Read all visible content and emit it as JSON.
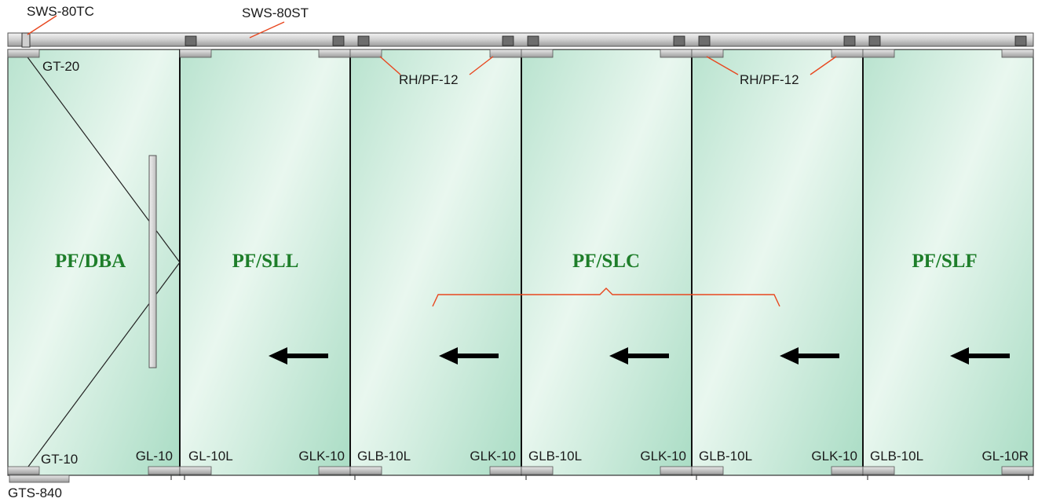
{
  "labels": {
    "top_closer": "SWS-80TC",
    "top_track": "SWS-80ST",
    "top_pivot": "GT-20",
    "bottom_pivot": "GT-10",
    "floor_spring": "GTS-840",
    "roller_hanger_1": "RH/PF-12",
    "roller_hanger_2": "RH/PF-12"
  },
  "panels": [
    {
      "name": "PF/DBA",
      "bottom_left": "GT-10",
      "bottom_right": "GL-10"
    },
    {
      "name": "PF/SLL",
      "bottom_left": "GL-10L",
      "bottom_right": "GLK-10"
    },
    {
      "name": "",
      "bottom_left": "GLB-10L",
      "bottom_right": "GLK-10"
    },
    {
      "name": "PF/SLC",
      "bottom_left": "GLB-10L",
      "bottom_right": "GLK-10"
    },
    {
      "name": "",
      "bottom_left": "GLB-10L",
      "bottom_right": "GLK-10"
    },
    {
      "name": "PF/SLF",
      "bottom_left": "GLB-10L",
      "bottom_right": "GL-10R"
    }
  ],
  "arrows": {
    "direction": "left",
    "count": 5
  },
  "colors": {
    "panel_label": "#1e7e2a",
    "leader": "#e8471f"
  }
}
